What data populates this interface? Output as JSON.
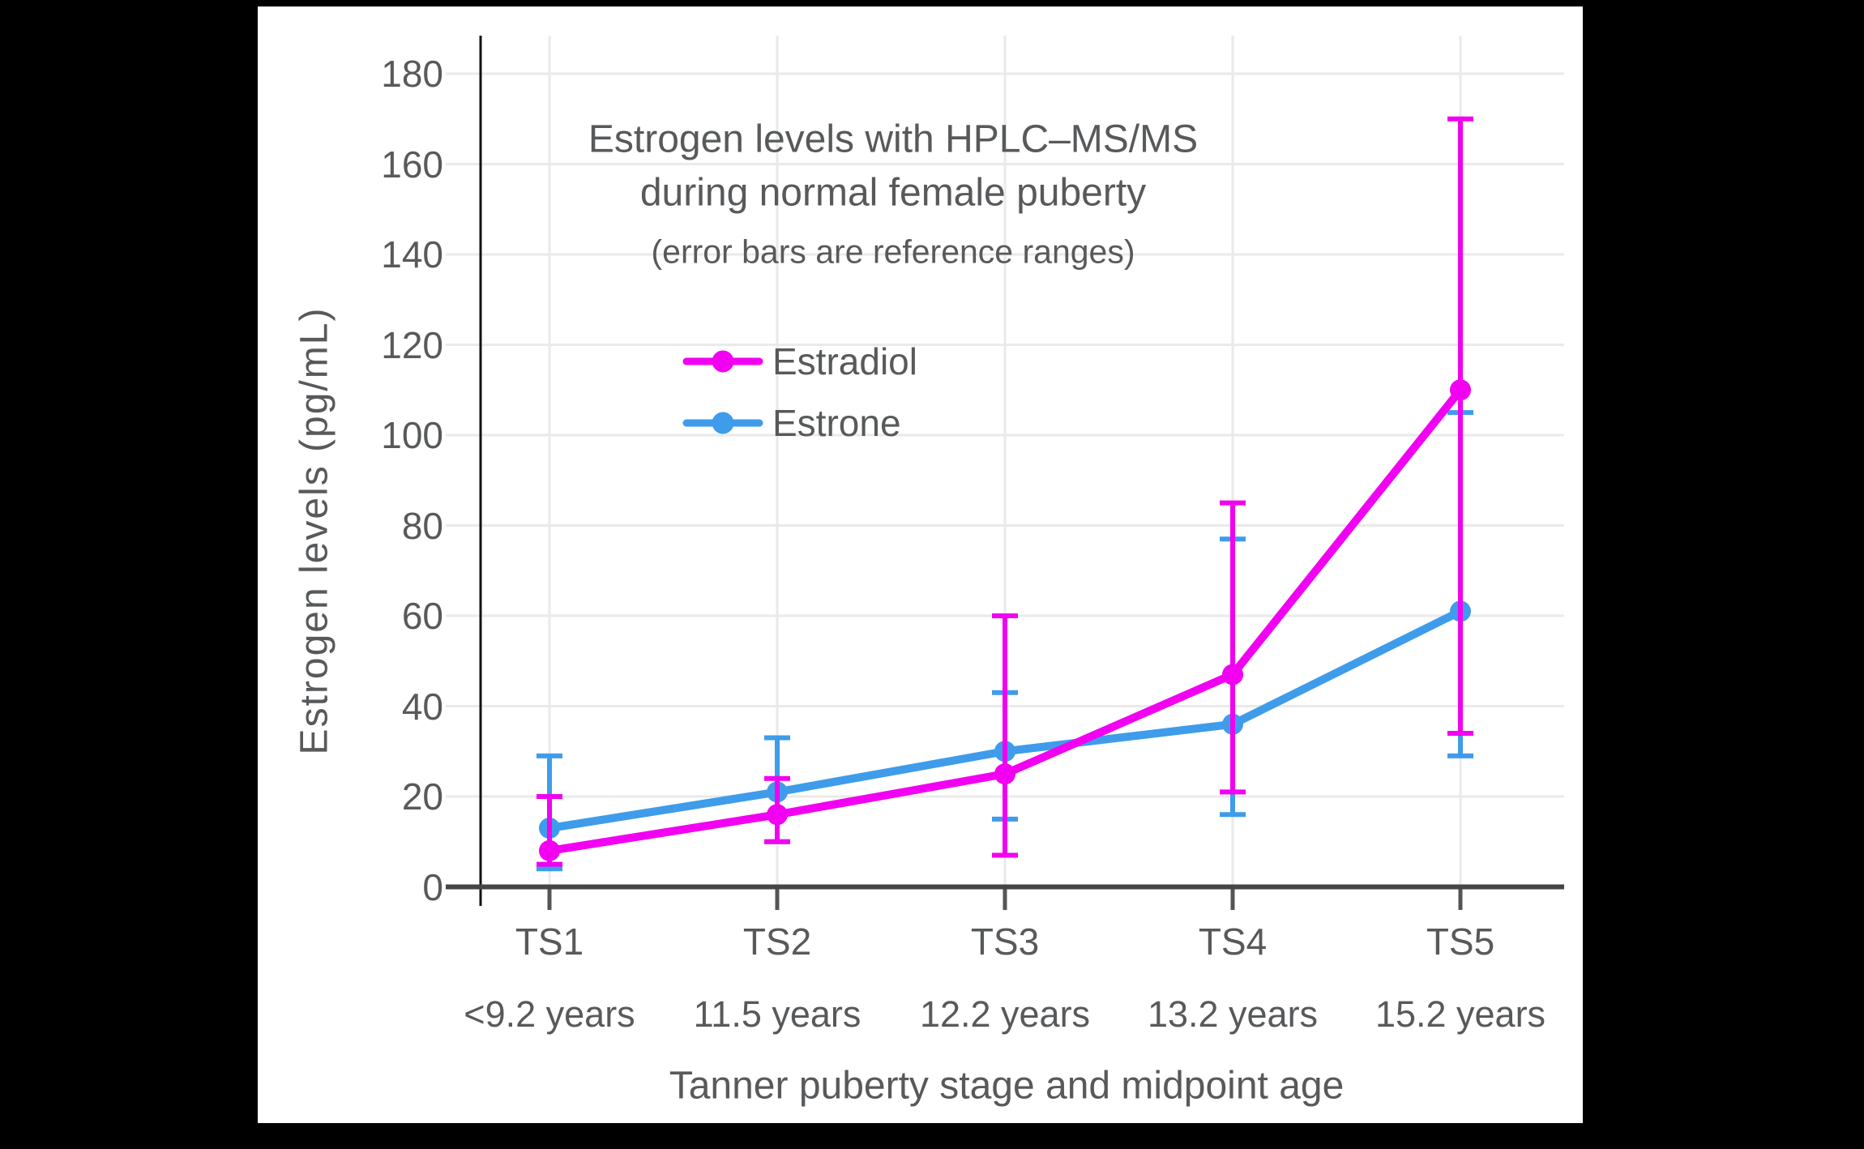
{
  "page": {
    "background_color": "#000000",
    "card_background_color": "#FFFFFF",
    "text_color": "#57595B",
    "gridline_color": "#EAEAEA",
    "axis_color": "#454545"
  },
  "chart_data": {
    "type": "line",
    "title_line1": "Estrogen levels with HPLC–MS/MS",
    "title_line2": "during normal female puberty",
    "subtitle": "(error bars are reference ranges)",
    "xlabel": "Tanner puberty stage and midpoint age",
    "ylabel": "Estrogen levels (pg/mL)",
    "categories": [
      "TS1",
      "TS2",
      "TS3",
      "TS4",
      "TS5"
    ],
    "category_ages": [
      "<9.2 years",
      "11.5 years",
      "12.2 years",
      "13.2 years",
      "15.2 years"
    ],
    "y_ticks": [
      0,
      20,
      40,
      60,
      80,
      100,
      120,
      140,
      160,
      180
    ],
    "ylim": [
      0,
      187
    ],
    "grid": true,
    "legend_position": "upper-center-inside",
    "error_bars": "reference ranges",
    "series": [
      {
        "name": "Estradiol",
        "color": "#F100F1",
        "values": [
          8,
          16,
          25,
          47,
          110
        ],
        "error_low": [
          5,
          10,
          7,
          21,
          34
        ],
        "error_high": [
          20,
          24,
          60,
          85,
          170
        ]
      },
      {
        "name": "Estrone",
        "color": "#3E9CEA",
        "values": [
          13,
          21,
          30,
          36,
          61
        ],
        "error_low": [
          4,
          10,
          15,
          16,
          29
        ],
        "error_high": [
          29,
          33,
          43,
          77,
          105
        ]
      }
    ]
  }
}
